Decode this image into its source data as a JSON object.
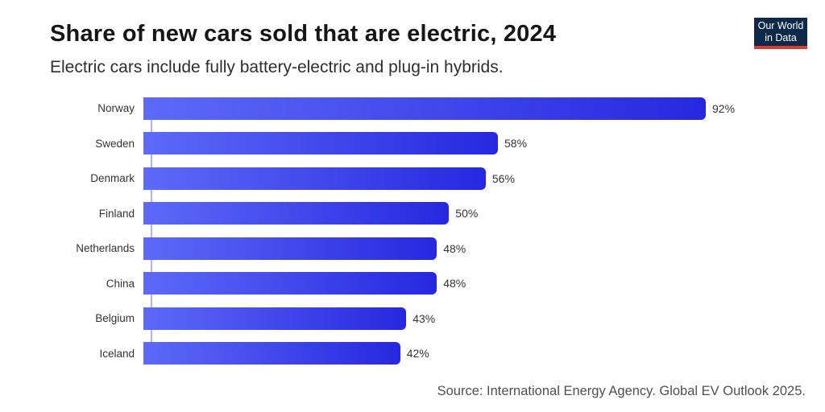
{
  "header": {
    "title": "Share of new cars sold that are electric, 2024",
    "subtitle": "Electric cars include fully battery-electric and plug-in hybrids."
  },
  "logo": {
    "line1": "Our World",
    "line2": "in Data",
    "bg_color": "#0c2949",
    "accent_color": "#dc3b2f"
  },
  "chart_data": {
    "type": "bar",
    "orientation": "horizontal",
    "title": "Share of new cars sold that are electric, 2024",
    "categories": [
      "Norway",
      "Sweden",
      "Denmark",
      "Finland",
      "Netherlands",
      "China",
      "Belgium",
      "Iceland"
    ],
    "values": [
      92,
      58,
      56,
      50,
      48,
      48,
      43,
      42
    ],
    "unit": "%",
    "xlabel": "",
    "ylabel": "",
    "xlim": [
      0,
      100
    ],
    "grid": false,
    "legend": false,
    "bar_gradient_start": "#5d6af8",
    "bar_gradient_end": "#2628df",
    "axis_line_color": "#aab4f7"
  },
  "footer": {
    "source": "Source: International Energy Agency. Global EV Outlook 2025."
  }
}
